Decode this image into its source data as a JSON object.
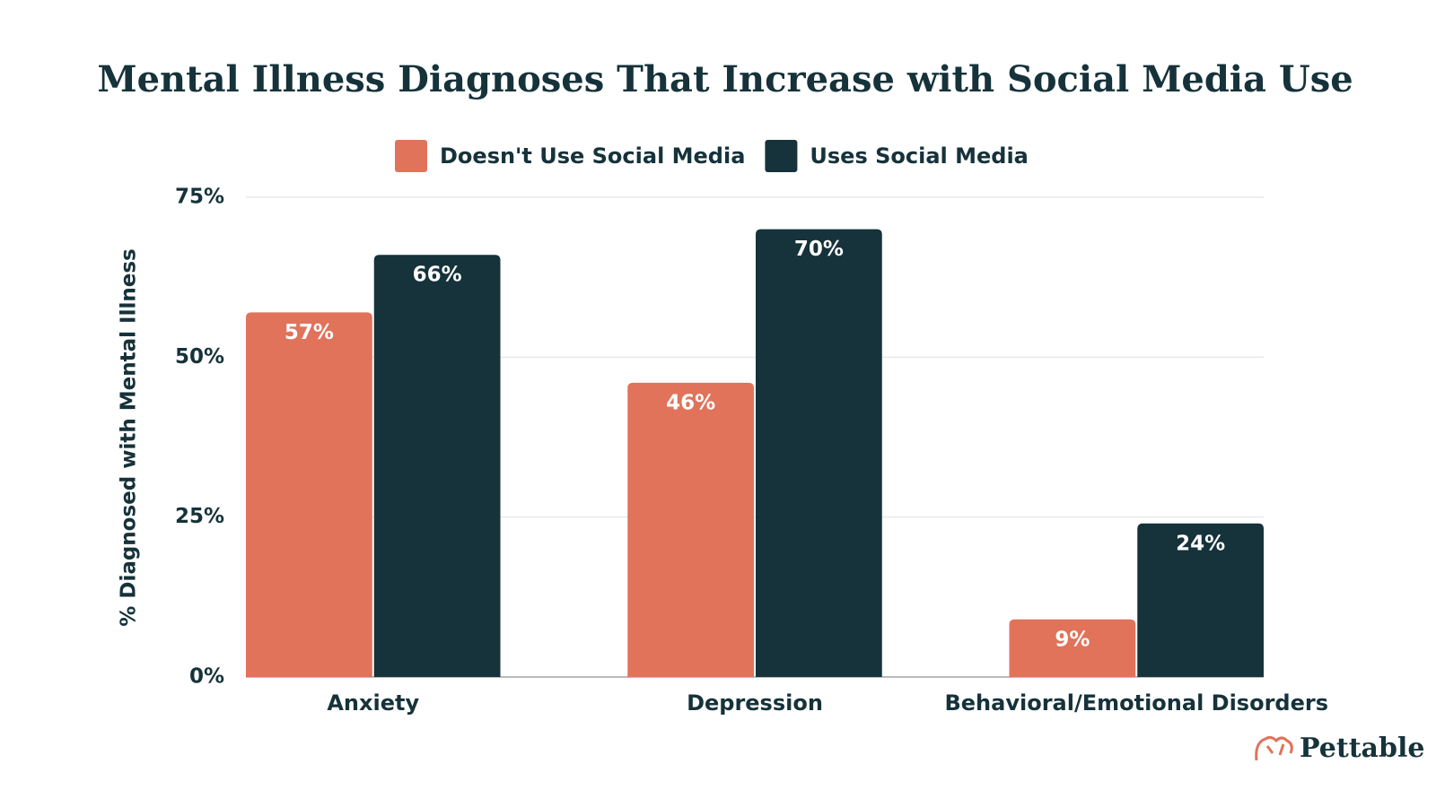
{
  "chart_data": {
    "type": "bar",
    "title": "Mental Illness Diagnoses That Increase with Social Media Use",
    "y_label": "% Diagnosed with Mental Illness",
    "categories": [
      "Anxiety",
      "Depression",
      "Behavioral/Emotional Disorders"
    ],
    "series": [
      {
        "name": "Doesn't Use Social Media",
        "color": "#e0735a",
        "values": [
          57,
          46,
          9
        ],
        "value_labels": [
          "57%",
          "46%",
          "9%"
        ]
      },
      {
        "name": "Uses Social Media",
        "color": "#16323a",
        "values": [
          66,
          70,
          24
        ],
        "value_labels": [
          "66%",
          "70%",
          "24%"
        ]
      }
    ],
    "ylim": [
      0,
      75
    ],
    "yticks": [
      {
        "value": 0,
        "label": "0%"
      },
      {
        "value": 25,
        "label": "25%"
      },
      {
        "value": 50,
        "label": "50%"
      },
      {
        "value": 75,
        "label": "75%"
      }
    ],
    "grid": true,
    "legend": "top",
    "brand": "Pettable"
  }
}
